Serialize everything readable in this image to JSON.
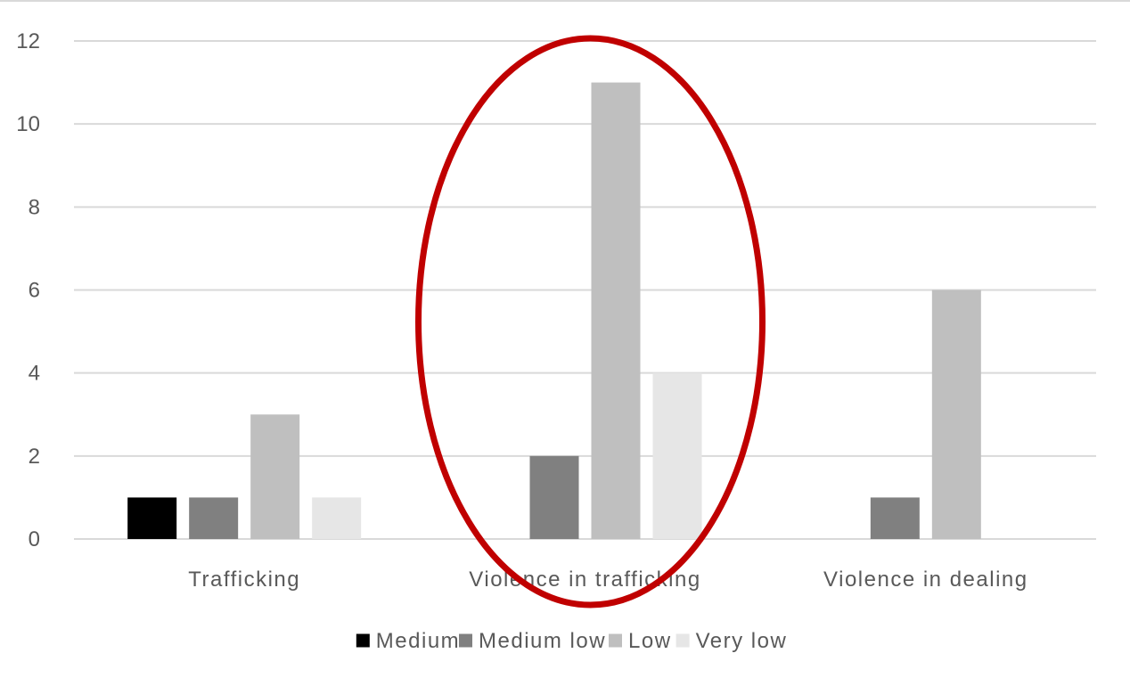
{
  "chart_data": {
    "type": "bar",
    "categories": [
      "Trafficking",
      "Violence in trafficking",
      "Violence in dealing"
    ],
    "series": [
      {
        "name": "Medium",
        "values": [
          1,
          0,
          0
        ],
        "color": "#000000"
      },
      {
        "name": "Medium low",
        "values": [
          1,
          2,
          1
        ],
        "color": "#808080"
      },
      {
        "name": "Low",
        "values": [
          3,
          11,
          6
        ],
        "color": "#bfbfbf"
      },
      {
        "name": "Very low",
        "values": [
          1,
          4,
          0
        ],
        "color": "#e6e6e6"
      }
    ],
    "yticks": [
      "0",
      "2",
      "4",
      "6",
      "8",
      "10",
      "12"
    ],
    "ylim": [
      0,
      12
    ],
    "grid": true,
    "legend_position": "bottom",
    "annotation": {
      "shape": "ellipse",
      "highlighted_category": "Violence in trafficking",
      "color": "#c00000"
    },
    "colors": {
      "gridline": "#d9d9d9",
      "text": "#595959"
    }
  }
}
